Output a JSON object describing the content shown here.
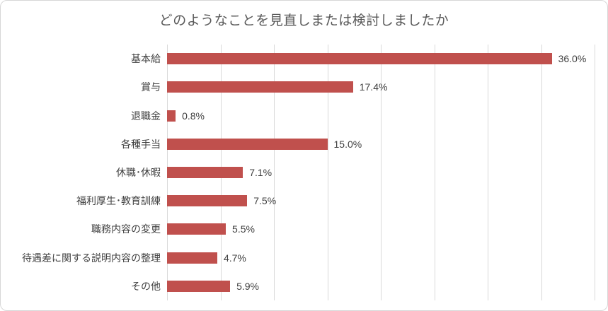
{
  "chart_data": {
    "type": "bar",
    "orientation": "horizontal",
    "title": "どのようなことを見直しまたは検討しましたか",
    "categories": [
      "基本給",
      "賞与",
      "退職金",
      "各種手当",
      "休職･休暇",
      "福利厚生･教育訓練",
      "職務内容の変更",
      "待遇差に関する説明内容の整理",
      "その他"
    ],
    "values": [
      36.0,
      17.4,
      0.8,
      15.0,
      7.1,
      7.5,
      5.5,
      4.7,
      5.9
    ],
    "data_labels": [
      "36.0%",
      "17.4%",
      "0.8%",
      "15.0%",
      "7.1%",
      "7.5%",
      "5.5%",
      "4.7%",
      "5.9%"
    ],
    "xlim": [
      0,
      40
    ],
    "gridline_step": 5,
    "grid": true,
    "legend": false,
    "xlabel": "",
    "ylabel": "",
    "colors": {
      "bar": "#c0504d",
      "title": "#595959",
      "category_label": "#404040",
      "value_label": "#404040",
      "gridline": "#d9d9d9",
      "axis_line": "#d9d9d9",
      "frame_border": "#d7d7d7",
      "background": "#ffffff"
    }
  }
}
